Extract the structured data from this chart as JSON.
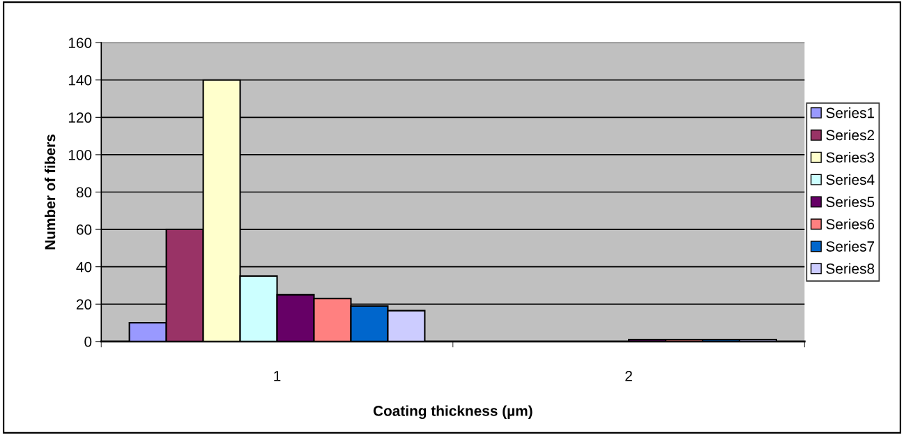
{
  "chart_data": {
    "type": "bar",
    "xlabel": "Coating thickness (µm)",
    "ylabel": "Number of fibers",
    "categories": [
      "1",
      "2"
    ],
    "series": [
      {
        "name": "Series1",
        "color": "#9999ff",
        "values": [
          10,
          null
        ]
      },
      {
        "name": "Series2",
        "color": "#993366",
        "values": [
          60,
          null
        ]
      },
      {
        "name": "Series3",
        "color": "#ffffcc",
        "values": [
          140,
          null
        ]
      },
      {
        "name": "Series4",
        "color": "#ccffff",
        "values": [
          35,
          null
        ]
      },
      {
        "name": "Series5",
        "color": "#660066",
        "values": [
          25,
          1
        ]
      },
      {
        "name": "Series6",
        "color": "#ff8080",
        "values": [
          23,
          1
        ]
      },
      {
        "name": "Series7",
        "color": "#0066cc",
        "values": [
          19,
          1
        ]
      },
      {
        "name": "Series8",
        "color": "#ccccff",
        "values": [
          16.5,
          1
        ]
      }
    ],
    "ylim": [
      0,
      160
    ],
    "yticks": [
      0,
      20,
      40,
      60,
      80,
      100,
      120,
      140,
      160
    ],
    "grid": "y",
    "legend": "right"
  }
}
